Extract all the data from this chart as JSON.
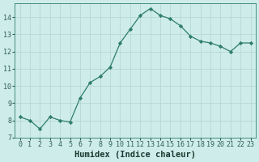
{
  "x": [
    0,
    1,
    2,
    3,
    4,
    5,
    6,
    7,
    8,
    9,
    10,
    11,
    12,
    13,
    14,
    15,
    16,
    17,
    18,
    19,
    20,
    21,
    22,
    23
  ],
  "y": [
    8.2,
    8.0,
    7.5,
    8.2,
    8.0,
    7.9,
    9.3,
    10.2,
    10.55,
    11.1,
    12.5,
    13.3,
    14.1,
    14.5,
    14.1,
    13.9,
    13.5,
    12.9,
    12.6,
    12.5,
    12.3,
    12.0,
    12.5,
    12.5
  ],
  "xlabel": "Humidex (Indice chaleur)",
  "ylim": [
    7,
    14.8
  ],
  "xlim": [
    -0.5,
    23.5
  ],
  "yticks": [
    7,
    8,
    9,
    10,
    11,
    12,
    13,
    14
  ],
  "xticks": [
    0,
    1,
    2,
    3,
    4,
    5,
    6,
    7,
    8,
    9,
    10,
    11,
    12,
    13,
    14,
    15,
    16,
    17,
    18,
    19,
    20,
    21,
    22,
    23
  ],
  "line_color": "#2e7d6e",
  "marker": "D",
  "marker_size": 2.2,
  "bg_color": "#ceecea",
  "grid_color": "#b8d8d4",
  "axis_color": "#2e7d6e",
  "tick_label_color": "#2e5f55",
  "xlabel_color": "#1a3a30",
  "xlabel_fontsize": 7.5,
  "tick_fontsize": 6.0
}
